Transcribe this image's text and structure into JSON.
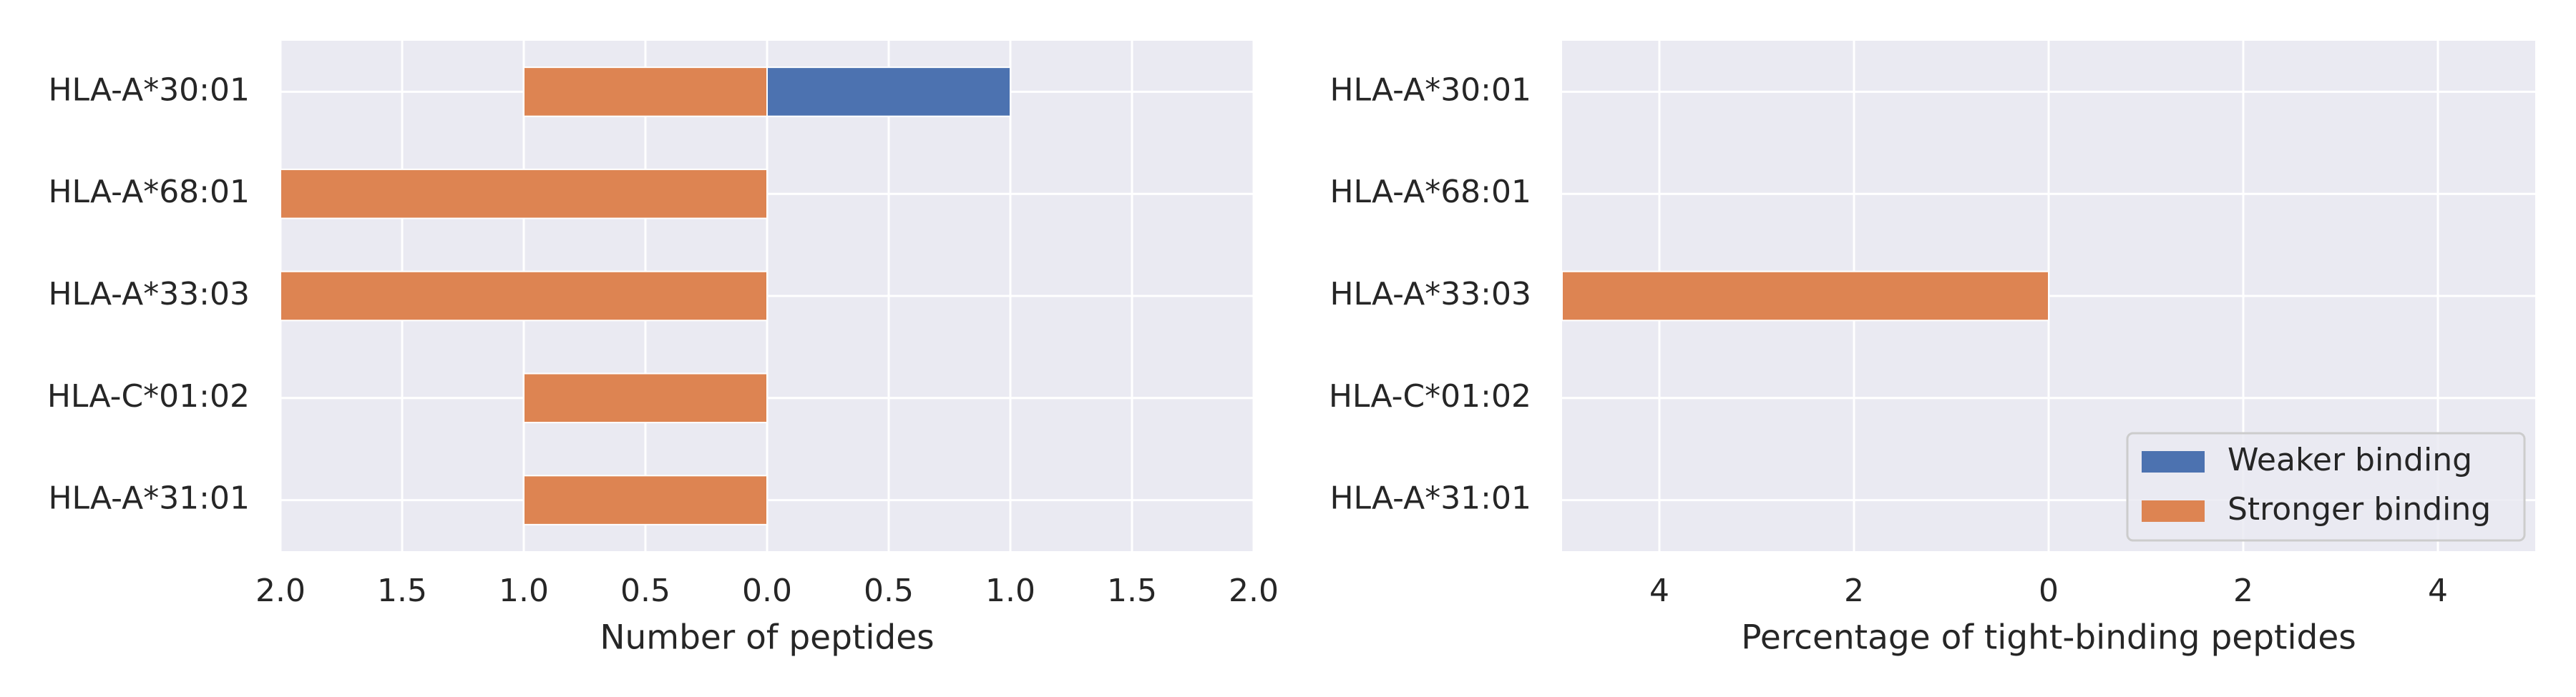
{
  "chart_data": [
    {
      "type": "bar",
      "orientation": "horizontal",
      "diverging": true,
      "categories": [
        "HLA-A*30:01",
        "HLA-A*68:01",
        "HLA-A*33:03",
        "HLA-C*01:02",
        "HLA-A*31:01"
      ],
      "series": [
        {
          "name": "Weaker binding",
          "values": [
            1,
            0,
            0,
            0,
            0
          ],
          "side": "right",
          "color": "#4c72b0"
        },
        {
          "name": "Stronger binding",
          "values": [
            1,
            2,
            2,
            1,
            1
          ],
          "side": "left",
          "color": "#dd8452"
        }
      ],
      "xlabel": "Number of peptides",
      "xlim": [
        -2,
        2
      ],
      "xticks": [
        -2,
        -1.5,
        -1,
        -0.5,
        0,
        0.5,
        1,
        1.5,
        2
      ],
      "xtick_labels": [
        "2.0",
        "1.5",
        "1.0",
        "0.5",
        "0.0",
        "0.5",
        "1.0",
        "1.5",
        "2.0"
      ],
      "grid": true,
      "background": "#eaeaf2"
    },
    {
      "type": "bar",
      "orientation": "horizontal",
      "diverging": true,
      "categories": [
        "HLA-A*30:01",
        "HLA-A*68:01",
        "HLA-A*33:03",
        "HLA-C*01:02",
        "HLA-A*31:01"
      ],
      "series": [
        {
          "name": "Weaker binding",
          "values": [
            0,
            0,
            0,
            0,
            0
          ],
          "side": "right",
          "color": "#4c72b0"
        },
        {
          "name": "Stronger binding",
          "values": [
            0,
            0,
            5,
            0,
            0
          ],
          "side": "left",
          "color": "#dd8452"
        }
      ],
      "xlabel": "Percentage of tight-binding peptides",
      "xlim": [
        -5,
        5
      ],
      "xticks": [
        -4,
        -2,
        0,
        2,
        4
      ],
      "xtick_labels": [
        "4",
        "2",
        "0",
        "2",
        "4"
      ],
      "grid": true,
      "background": "#eaeaf2",
      "legend": {
        "placement": "lower-right",
        "entries": [
          "Weaker binding",
          "Stronger binding"
        ]
      }
    }
  ]
}
